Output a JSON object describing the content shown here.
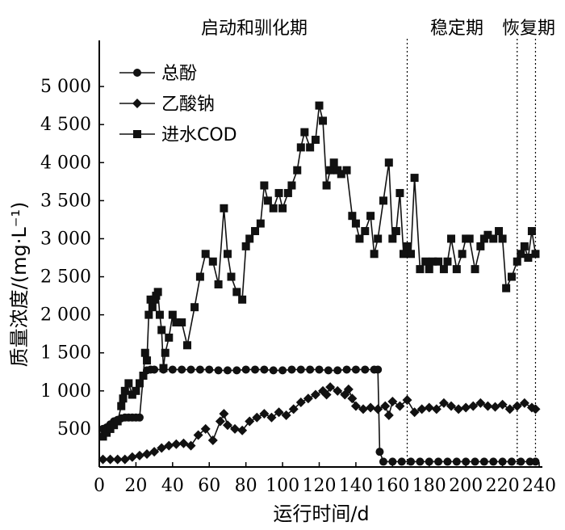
{
  "chart_data": {
    "type": "line",
    "xlabel": "运行时间/d",
    "ylabel": "质量浓度/(mg·L⁻¹)",
    "xlim": [
      0,
      240
    ],
    "ylim": [
      0,
      5500
    ],
    "x_ticks": [
      0,
      20,
      40,
      60,
      80,
      100,
      120,
      140,
      160,
      180,
      200,
      220,
      240
    ],
    "y_ticks": [
      500,
      1000,
      1500,
      2000,
      2500,
      3000,
      3500,
      4000,
      4500,
      5000
    ],
    "y_tick_labels": [
      "500",
      "1 000",
      "1 500",
      "2 000",
      "2 500",
      "3 000",
      "3 500",
      "4 000",
      "4 500",
      "5 000"
    ],
    "phases": [
      {
        "label": "启动和驯化期",
        "x_start": 0,
        "x_end": 168
      },
      {
        "label": "稳定期",
        "x_start": 168,
        "x_end": 228
      },
      {
        "label": "恢复期",
        "x_start": 228,
        "x_end": 238
      }
    ],
    "phase_boundaries": [
      168,
      228,
      238
    ],
    "legend_position": "top-left",
    "series": [
      {
        "name": "总酚",
        "marker": "circle",
        "x": [
          2,
          4,
          6,
          8,
          10,
          12,
          14,
          16,
          18,
          20,
          22,
          24,
          26,
          28,
          30,
          35,
          40,
          45,
          50,
          55,
          60,
          65,
          70,
          75,
          80,
          85,
          90,
          95,
          100,
          105,
          110,
          115,
          120,
          125,
          130,
          135,
          140,
          145,
          150,
          152,
          153,
          155,
          160,
          165,
          170,
          175,
          180,
          185,
          190,
          195,
          200,
          205,
          210,
          215,
          220,
          225,
          230,
          235,
          238
        ],
        "values": [
          500,
          520,
          560,
          600,
          620,
          640,
          650,
          650,
          650,
          650,
          650,
          1200,
          1270,
          1280,
          1280,
          1280,
          1280,
          1280,
          1280,
          1280,
          1280,
          1270,
          1270,
          1270,
          1280,
          1280,
          1280,
          1270,
          1270,
          1280,
          1280,
          1280,
          1280,
          1270,
          1270,
          1280,
          1280,
          1280,
          1280,
          1280,
          200,
          70,
          70,
          70,
          70,
          70,
          70,
          70,
          70,
          70,
          70,
          70,
          70,
          70,
          70,
          70,
          70,
          70,
          70
        ]
      },
      {
        "name": "乙酸钠",
        "marker": "diamond",
        "x": [
          2,
          6,
          10,
          14,
          18,
          22,
          26,
          30,
          34,
          38,
          42,
          46,
          50,
          54,
          58,
          62,
          66,
          68,
          70,
          74,
          78,
          82,
          86,
          90,
          94,
          98,
          102,
          106,
          110,
          114,
          118,
          122,
          124,
          126,
          130,
          134,
          136,
          138,
          140,
          144,
          148,
          152,
          156,
          158,
          160,
          164,
          168,
          172,
          176,
          180,
          184,
          188,
          192,
          196,
          200,
          204,
          208,
          212,
          216,
          220,
          224,
          228,
          232,
          236,
          238
        ],
        "values": [
          100,
          100,
          100,
          100,
          130,
          150,
          170,
          200,
          250,
          280,
          300,
          310,
          280,
          420,
          500,
          350,
          600,
          700,
          550,
          500,
          480,
          600,
          650,
          700,
          650,
          720,
          680,
          760,
          850,
          900,
          950,
          1000,
          950,
          1050,
          1000,
          950,
          1020,
          900,
          800,
          760,
          780,
          760,
          800,
          680,
          860,
          800,
          880,
          720,
          760,
          780,
          760,
          840,
          800,
          760,
          780,
          800,
          840,
          800,
          790,
          820,
          760,
          800,
          840,
          780,
          760
        ]
      },
      {
        "name": "进水COD",
        "marker": "square",
        "x": [
          2,
          4,
          6,
          8,
          10,
          12,
          13,
          14,
          16,
          18,
          20,
          22,
          24,
          25,
          26,
          27,
          28,
          29,
          30,
          31,
          32,
          33,
          34,
          35,
          36,
          38,
          40,
          42,
          45,
          48,
          52,
          55,
          58,
          62,
          65,
          68,
          70,
          72,
          75,
          78,
          80,
          82,
          85,
          88,
          90,
          92,
          95,
          98,
          100,
          103,
          105,
          108,
          110,
          112,
          115,
          118,
          120,
          122,
          124,
          126,
          128,
          130,
          132,
          135,
          138,
          140,
          142,
          145,
          148,
          150,
          152,
          155,
          158,
          160,
          162,
          164,
          166,
          168,
          170,
          172,
          175,
          178,
          180,
          182,
          185,
          188,
          190,
          192,
          195,
          198,
          200,
          202,
          205,
          208,
          210,
          212,
          215,
          218,
          220,
          222,
          225,
          228,
          230,
          232,
          234,
          236,
          238
        ],
        "values": [
          400,
          450,
          500,
          550,
          600,
          800,
          900,
          1000,
          1100,
          950,
          1000,
          1100,
          1200,
          1500,
          1400,
          2000,
          2200,
          2100,
          2200,
          2250,
          2300,
          2000,
          1800,
          1300,
          1500,
          1700,
          2000,
          1900,
          1900,
          1600,
          2100,
          2500,
          2800,
          2700,
          2400,
          3400,
          2800,
          2500,
          2300,
          2200,
          2900,
          3000,
          3100,
          3200,
          3700,
          3500,
          3400,
          3600,
          3400,
          3600,
          3700,
          3900,
          4200,
          4400,
          4200,
          4300,
          4750,
          4550,
          3700,
          3900,
          4000,
          3900,
          3850,
          3900,
          3300,
          3200,
          3000,
          3100,
          3300,
          2800,
          3000,
          3500,
          4000,
          3000,
          3100,
          3600,
          2800,
          2900,
          2800,
          3800,
          2600,
          2700,
          2600,
          2700,
          2700,
          2600,
          2700,
          3000,
          2600,
          2800,
          3000,
          3000,
          2600,
          2900,
          3000,
          3050,
          3000,
          3100,
          3000,
          2350,
          2500,
          2700,
          2800,
          2900,
          2750,
          3100,
          2800
        ]
      }
    ]
  }
}
